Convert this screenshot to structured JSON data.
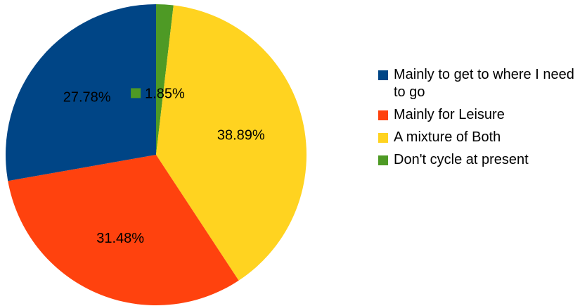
{
  "chart_data": {
    "type": "pie",
    "title": "",
    "start_angle_deg": 0,
    "direction": "clockwise",
    "legend_position": "right",
    "slices": [
      {
        "label": "Don't cycle at present",
        "value": 1.85,
        "display": "1.85%",
        "color": "#4e9a25"
      },
      {
        "label": "A mixture of Both",
        "value": 38.89,
        "display": "38.89%",
        "color": "#ffd320"
      },
      {
        "label": "Mainly for Leisure",
        "value": 31.48,
        "display": "31.48%",
        "color": "#ff420e"
      },
      {
        "label": "Mainly to get to where I need to go",
        "value": 27.78,
        "display": "27.78%",
        "color": "#004586"
      }
    ],
    "legend_order": [
      "Mainly to get to where I need to go",
      "Mainly for Leisure",
      "A mixture of Both",
      "Don't cycle at present"
    ]
  }
}
